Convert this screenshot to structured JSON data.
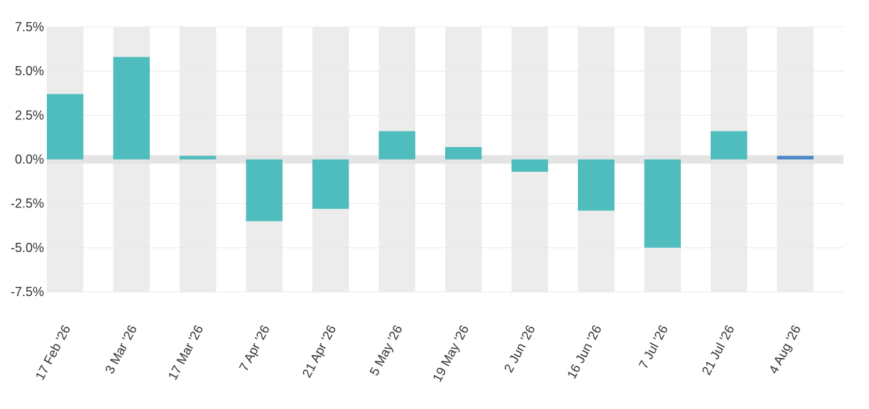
{
  "chart_data": {
    "type": "bar",
    "title": "",
    "xlabel": "",
    "ylabel": "",
    "categories": [
      "17 Feb '26",
      "3 Mar '26",
      "17 Mar '26",
      "7 Apr '26",
      "21 Apr '26",
      "5 May '26",
      "19 May '26",
      "2 Jun '26",
      "16 Jun '26",
      "7 Jul '26",
      "21 Jul '26",
      "4 Aug '26"
    ],
    "values": [
      3.7,
      5.8,
      0.2,
      -3.5,
      -2.8,
      1.6,
      0.7,
      -0.7,
      -2.9,
      -5.0,
      1.6,
      0.2
    ],
    "ylim": [
      -7.5,
      7.5
    ],
    "yticks": [
      7.5,
      5.0,
      2.5,
      0.0,
      -2.5,
      -5.0,
      -7.5
    ],
    "ytick_labels": [
      "7.5%",
      "5.0%",
      "2.5%",
      "0.0%",
      "-2.5%",
      "-5.0%",
      "-7.5%"
    ],
    "grid": true,
    "legend": "none",
    "colors": {
      "bar": "#4fbcbd",
      "highlight": "#4a86c8",
      "band": "#ececec",
      "zero_band": "#e4e4e4"
    },
    "highlight_index": 11
  }
}
